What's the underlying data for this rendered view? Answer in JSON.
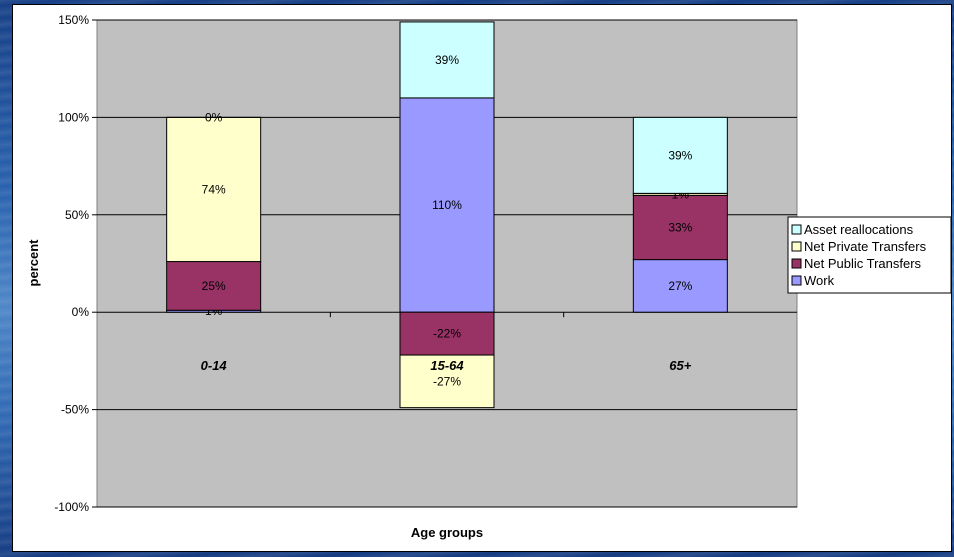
{
  "chart_data": {
    "type": "bar",
    "stacked": true,
    "title": "",
    "xlabel": "Age groups",
    "ylabel": "percent",
    "ylim": [
      -100,
      150
    ],
    "yticks": [
      -100,
      -50,
      0,
      50,
      100,
      150
    ],
    "yticks_labels": [
      "-100%",
      "-50%",
      "0%",
      "50%",
      "100%",
      "150%"
    ],
    "grid": true,
    "legend_position": "right",
    "categories": [
      "0-14",
      "15-64",
      "65+"
    ],
    "series": [
      {
        "name": "Work",
        "color": "#9999ff",
        "values": [
          1,
          110,
          27
        ],
        "labels": [
          "1%",
          "110%",
          "27%"
        ],
        "label_cat": [
          0,
          1,
          2
        ]
      },
      {
        "name": "Net Public Transfers",
        "color": "#993366",
        "values": [
          25,
          -22,
          33
        ],
        "labels": [
          "25%",
          "-22%",
          "33%"
        ]
      },
      {
        "name": "Net Private Transfers",
        "color": "#ffffcc",
        "values": [
          74,
          -27,
          1
        ],
        "labels": [
          "74%",
          "-27%",
          "1%"
        ]
      },
      {
        "name": "Asset reallocations",
        "color": "#ccffff",
        "values": [
          0,
          39,
          39
        ],
        "labels": [
          "0%",
          "39%",
          "39%"
        ]
      }
    ],
    "legend_order": [
      "Asset reallocations",
      "Net Private Transfers",
      "Net Public Transfers",
      "Work"
    ]
  }
}
